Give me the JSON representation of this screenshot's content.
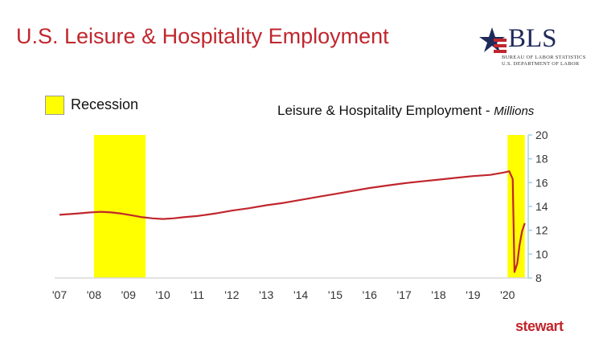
{
  "title": "U.S. Leisure & Hospitality Employment",
  "logo": {
    "name": "BLS",
    "line1": "BUREAU OF LABOR STATISTICS",
    "line2": "U.S. DEPARTMENT OF LABOR"
  },
  "footer_brand": "stewart",
  "colors": {
    "title": "#c0262d",
    "line": "#c0262d",
    "recession": "#ffff00",
    "axis": "#a6cfe0"
  },
  "chart_data": {
    "type": "line",
    "title": "Leisure & Hospitality Employment - ",
    "title_units": "Millions",
    "legend": [
      {
        "label": "Recession",
        "color": "#ffff00"
      }
    ],
    "x_tick_labels": [
      "'07",
      "'08",
      "'09",
      "'10",
      "'11",
      "'12",
      "'13",
      "'14",
      "'15",
      "'16",
      "'17",
      "'18",
      "'19",
      "'20"
    ],
    "xlim": [
      2007,
      2020.6
    ],
    "y_ticks": [
      8,
      10,
      12,
      14,
      16,
      18,
      20
    ],
    "ylim": [
      8,
      20
    ],
    "y_axis_side": "right",
    "grid": false,
    "recessions": [
      [
        2008.0,
        2009.5
      ],
      [
        2020.0,
        2020.5
      ]
    ],
    "series": [
      {
        "x": [
          2007.0,
          2007.5,
          2007.9,
          2008.2,
          2008.5,
          2008.8,
          2009.1,
          2009.4,
          2009.7,
          2010.0,
          2010.3,
          2010.6,
          2011.0,
          2011.5,
          2012.0,
          2012.5,
          2013.0,
          2013.5,
          2014.0,
          2014.5,
          2015.0,
          2015.5,
          2016.0,
          2016.5,
          2017.0,
          2017.5,
          2018.0,
          2018.5,
          2019.0,
          2019.5,
          2019.9,
          2020.05,
          2020.15,
          2020.2,
          2020.28,
          2020.35,
          2020.42,
          2020.5
        ],
        "y": [
          13.3,
          13.4,
          13.5,
          13.55,
          13.5,
          13.4,
          13.25,
          13.1,
          13.0,
          12.95,
          13.0,
          13.1,
          13.2,
          13.4,
          13.65,
          13.85,
          14.1,
          14.3,
          14.55,
          14.8,
          15.05,
          15.3,
          15.55,
          15.75,
          15.95,
          16.1,
          16.25,
          16.4,
          16.55,
          16.65,
          16.85,
          16.95,
          16.3,
          8.5,
          9.2,
          10.8,
          11.9,
          12.6
        ]
      }
    ]
  }
}
